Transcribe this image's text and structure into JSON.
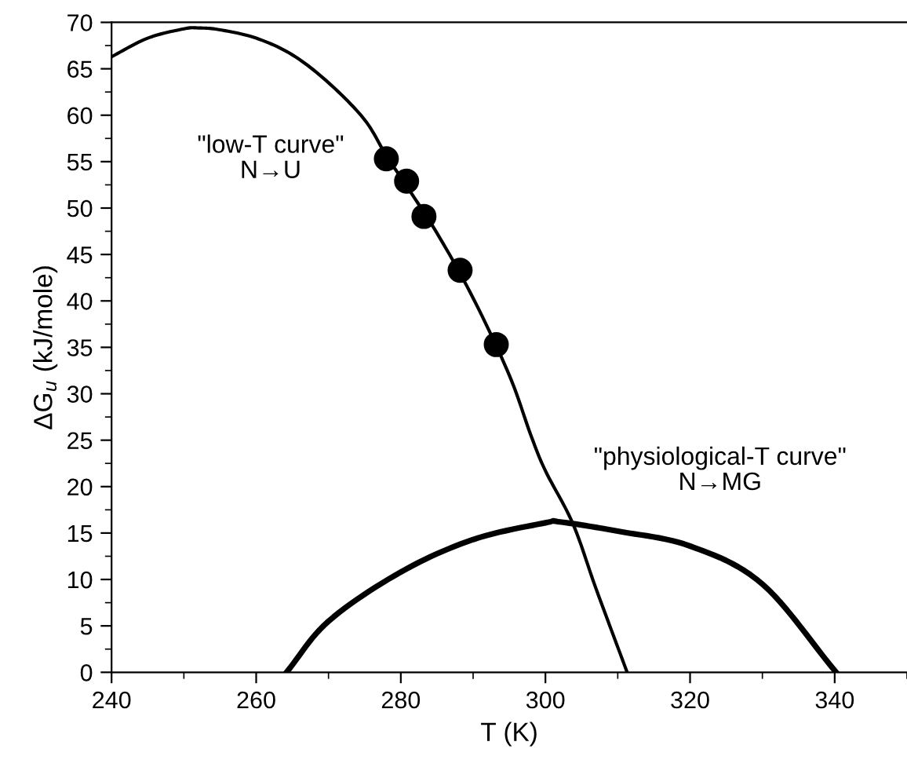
{
  "chart_data": {
    "type": "line",
    "xlabel": "T (K)",
    "ylabel": "ΔG$_{u}$ (kJ/mole)",
    "xlim": [
      240,
      350
    ],
    "xticks": [
      240,
      260,
      280,
      300,
      320,
      340
    ],
    "ylim": [
      0,
      70
    ],
    "yticks": [
      0,
      5,
      10,
      15,
      20,
      25,
      30,
      35,
      40,
      45,
      50,
      55,
      60,
      65,
      70
    ],
    "grid": false,
    "legend": false,
    "series": [
      {
        "color": "#000000",
        "line_style": "solid",
        "marker": "none",
        "x": [
          240,
          245,
          250,
          252,
          255,
          260,
          265,
          270,
          275,
          278,
          280,
          285,
          290,
          295,
          298,
          300,
          303.8,
          307,
          311.3
        ],
        "values": [
          66.3,
          68.3,
          69.3,
          69.4,
          69.2,
          68.3,
          66.5,
          63.5,
          59.5,
          55.6,
          53.3,
          47.3,
          40.3,
          32,
          25.5,
          21.7,
          16,
          9,
          0
        ]
      },
      {
        "type": "scatter",
        "color": "#000000",
        "marker": "circle",
        "x": [
          278,
          280.8,
          283.2,
          288.2,
          293.2
        ],
        "values": [
          55.3,
          52.9,
          49.1,
          43.3,
          35.3
        ]
      },
      {
        "color": "#000000",
        "line_style": "solid",
        "marker": "none",
        "x": [
          264.2,
          270,
          280,
          290,
          300,
          302,
          310,
          320,
          330,
          340.2
        ],
        "values": [
          0,
          5.5,
          10.8,
          14.3,
          16.1,
          16.2,
          15.2,
          13.6,
          9.5,
          0
        ]
      }
    ],
    "annotations": [
      "\"low-T curve\"\nN→U",
      "\"physiological-T curve\"\nN→MG"
    ]
  }
}
